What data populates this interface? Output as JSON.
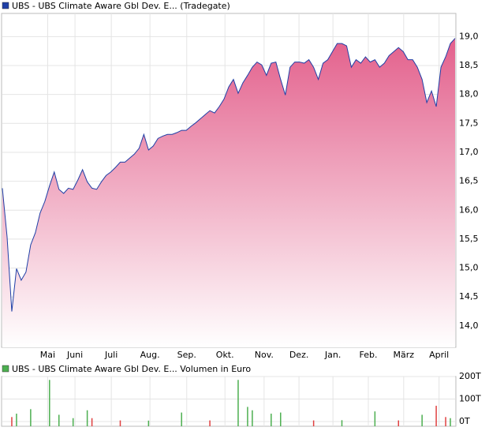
{
  "chart_data": [
    {
      "type": "area",
      "series": [
        {
          "name": "UBS - UBS Climate Aware Gbl Dev. E... (Tradegate)",
          "color": "#1f3fa6",
          "values": [
            16.38,
            15.54,
            14.25,
            14.99,
            14.79,
            14.93,
            15.4,
            15.61,
            15.95,
            16.15,
            16.42,
            16.66,
            16.36,
            16.29,
            16.38,
            16.36,
            16.52,
            16.7,
            16.49,
            16.38,
            16.36,
            16.49,
            16.6,
            16.66,
            16.74,
            16.83,
            16.83,
            16.9,
            16.97,
            17.07,
            17.31,
            17.04,
            17.11,
            17.24,
            17.28,
            17.31,
            17.31,
            17.34,
            17.38,
            17.38,
            17.45,
            17.51,
            17.58,
            17.65,
            17.72,
            17.68,
            17.79,
            17.92,
            18.13,
            18.26,
            18.02,
            18.2,
            18.33,
            18.47,
            18.56,
            18.51,
            18.33,
            18.54,
            18.56,
            18.26,
            17.99,
            18.47,
            18.56,
            18.56,
            18.54,
            18.6,
            18.47,
            18.26,
            18.54,
            18.6,
            18.74,
            18.88,
            18.88,
            18.84,
            18.47,
            18.6,
            18.54,
            18.65,
            18.56,
            18.6,
            18.47,
            18.54,
            18.67,
            18.74,
            18.81,
            18.74,
            18.6,
            18.6,
            18.47,
            18.26,
            17.86,
            18.06,
            17.79,
            18.47,
            18.65,
            18.88,
            18.97
          ]
        }
      ],
      "fill_top": "#e3608c",
      "fill_bottom": "#ffffff",
      "xlim": [
        0,
        96
      ],
      "xticks": [
        {
          "value": 9.6,
          "label": "Mai"
        },
        {
          "value": 15.4,
          "label": "Juni"
        },
        {
          "value": 23.1,
          "label": "Juli"
        },
        {
          "value": 31.3,
          "label": "Aug."
        },
        {
          "value": 39.1,
          "label": "Sep."
        },
        {
          "value": 47.2,
          "label": "Okt."
        },
        {
          "value": 55.5,
          "label": "Nov."
        },
        {
          "value": 62.9,
          "label": "Dez."
        },
        {
          "value": 70.1,
          "label": "Jan."
        },
        {
          "value": 77.6,
          "label": "Feb."
        },
        {
          "value": 85.1,
          "label": "März"
        },
        {
          "value": 92.6,
          "label": "April"
        }
      ],
      "ylim": [
        13.63,
        19.4
      ],
      "yticks": [
        {
          "value": 14.0,
          "label": "14,0"
        },
        {
          "value": 14.5,
          "label": "14,5"
        },
        {
          "value": 15.0,
          "label": "15,0"
        },
        {
          "value": 15.5,
          "label": "15,5"
        },
        {
          "value": 16.0,
          "label": "16,0"
        },
        {
          "value": 16.5,
          "label": "16,5"
        },
        {
          "value": 17.0,
          "label": "17,0"
        },
        {
          "value": 17.5,
          "label": "17,5"
        },
        {
          "value": 18.0,
          "label": "18,0"
        },
        {
          "value": 18.5,
          "label": "18,5"
        },
        {
          "value": 19.0,
          "label": "19,0"
        }
      ],
      "grid": true
    },
    {
      "type": "bar",
      "series": [
        {
          "name": "UBS - UBS Climate Aware Gbl Dev. E... Volumen in Euro",
          "color": "#4caf50",
          "x": [
            2,
            3,
            6,
            10,
            12,
            15,
            18,
            19,
            25,
            31,
            38,
            44,
            50,
            52,
            53,
            57,
            59,
            66,
            72,
            79,
            84,
            89,
            92,
            94,
            95
          ],
          "values": [
            20000,
            35000,
            55000,
            185000,
            30000,
            15000,
            50000,
            15000,
            5000,
            4000,
            40000,
            5000,
            185000,
            65000,
            50000,
            35000,
            40000,
            5000,
            6000,
            45000,
            5000,
            30000,
            70000,
            20000,
            15000
          ],
          "colors": [
            "#e04040",
            "#4caf50",
            "#4caf50",
            "#4caf50",
            "#4caf50",
            "#4caf50",
            "#4caf50",
            "#e04040",
            "#e04040",
            "#4caf50",
            "#4caf50",
            "#e04040",
            "#4caf50",
            "#4caf50",
            "#4caf50",
            "#4caf50",
            "#4caf50",
            "#e04040",
            "#4caf50",
            "#4caf50",
            "#e04040",
            "#4caf50",
            "#e04040",
            "#e04040",
            "#4caf50"
          ]
        }
      ],
      "xlim": [
        0,
        96
      ],
      "ylim": [
        0,
        200000
      ],
      "yticks": [
        {
          "value": 0,
          "label": "0T"
        },
        {
          "value": 100000,
          "label": "100T"
        },
        {
          "value": 200000,
          "label": "200T"
        }
      ],
      "grid": true
    }
  ]
}
